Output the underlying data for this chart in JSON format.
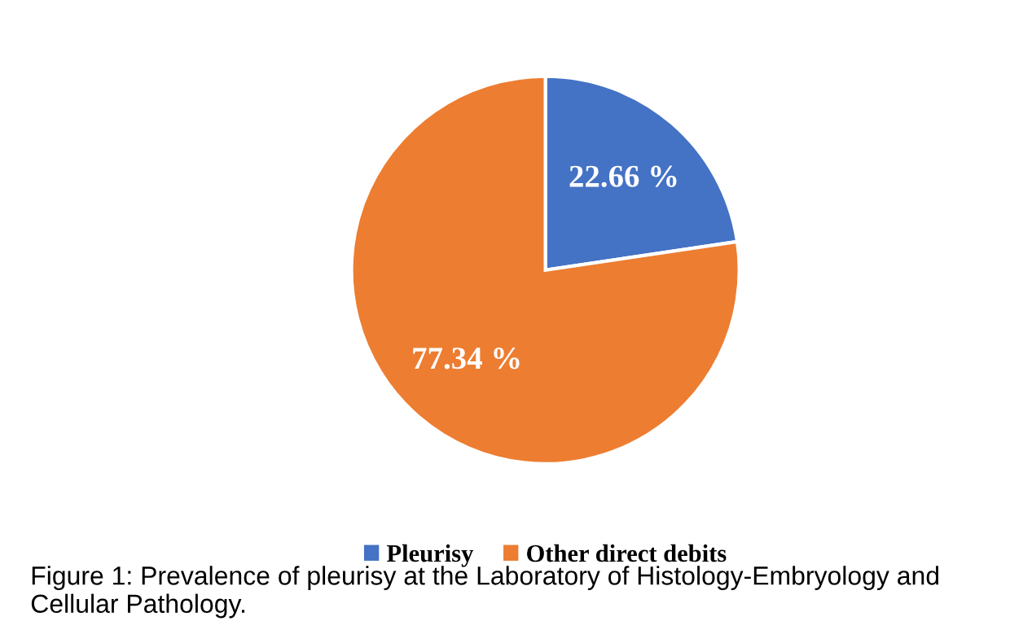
{
  "chart_data": {
    "type": "pie",
    "categories": [
      "Pleurisy",
      "Other direct debits"
    ],
    "values": [
      22.66,
      77.34
    ],
    "colors": [
      "#4472c4",
      "#ed7d31"
    ],
    "value_labels": [
      "22.66 %",
      "77.34 %"
    ],
    "legend": "bottom",
    "annotations": [
      "Figure 1: Prevalence of pleurisy at the Laboratory of Histology-Embryology and Cellular Pathology."
    ]
  }
}
